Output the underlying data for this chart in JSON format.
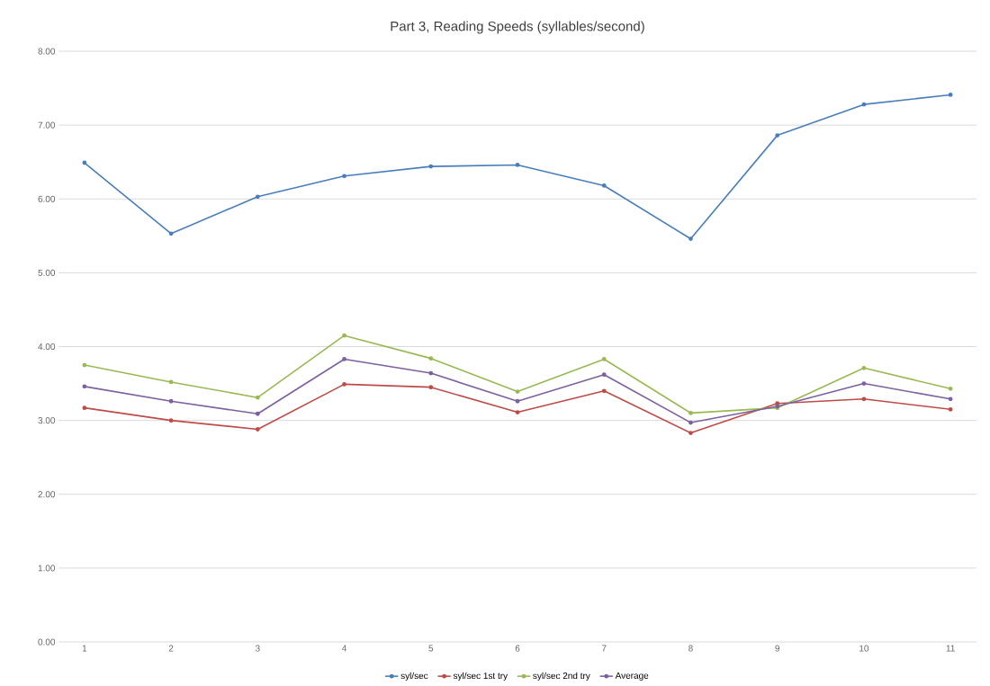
{
  "chart_data": {
    "type": "line",
    "title": "Part 3, Reading Speeds (syllables/second)",
    "categories": [
      "1",
      "2",
      "3",
      "4",
      "5",
      "6",
      "7",
      "8",
      "9",
      "10",
      "11"
    ],
    "series": [
      {
        "name": "syl/sec",
        "color": "#4a7ebb",
        "values": [
          6.49,
          5.53,
          6.03,
          6.31,
          6.44,
          6.46,
          6.18,
          5.46,
          6.86,
          7.28,
          7.41
        ]
      },
      {
        "name": "syl/sec 1st try",
        "color": "#be4b48",
        "values": [
          3.17,
          3.0,
          2.88,
          3.49,
          3.45,
          3.11,
          3.4,
          2.83,
          3.23,
          3.29,
          3.15
        ]
      },
      {
        "name": "syl/sec 2nd try",
        "color": "#98b954",
        "values": [
          3.75,
          3.52,
          3.31,
          4.15,
          3.84,
          3.39,
          3.83,
          3.1,
          3.17,
          3.71,
          3.43
        ]
      },
      {
        "name": "Average",
        "color": "#7d60a0",
        "values": [
          3.46,
          3.26,
          3.09,
          3.83,
          3.64,
          3.26,
          3.62,
          2.97,
          3.19,
          3.5,
          3.29
        ]
      }
    ],
    "ylim": [
      0,
      8
    ],
    "yticks": [
      {
        "value": 0,
        "label": "0.00"
      },
      {
        "value": 1,
        "label": "1.00"
      },
      {
        "value": 2,
        "label": "2.00"
      },
      {
        "value": 3,
        "label": "3.00"
      },
      {
        "value": 4,
        "label": "4.00"
      },
      {
        "value": 5,
        "label": "5.00"
      },
      {
        "value": 6,
        "label": "6.00"
      },
      {
        "value": 7,
        "label": "7.00"
      },
      {
        "value": 8,
        "label": "8.00"
      }
    ],
    "grid": "y",
    "legend": "bottom",
    "marker": "circle",
    "line_style": "solid"
  }
}
